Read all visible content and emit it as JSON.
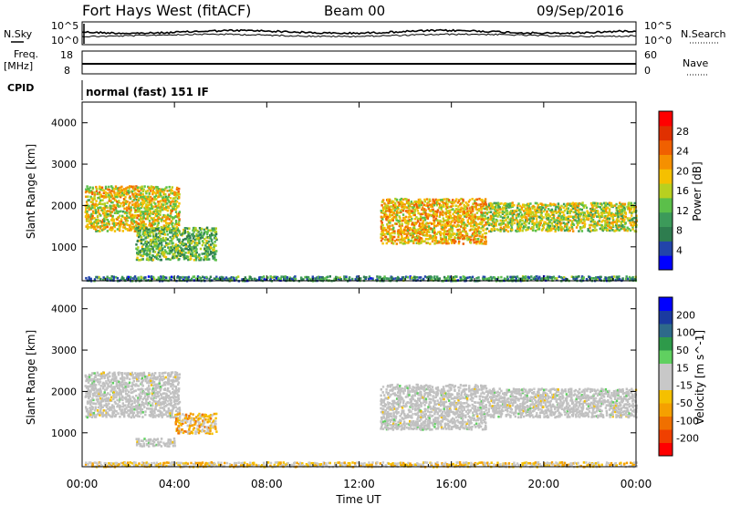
{
  "header": {
    "station": "Fort Hays West (fitACF)",
    "beam": "Beam 00",
    "date": "09/Sep/2016"
  },
  "top_panels": {
    "nsky_label": "N.Sky",
    "nsky_ticks": [
      "10^5",
      "10^0"
    ],
    "nsearch_label": "N.Search",
    "nsearch_ticks": [
      "10^5",
      "10^0"
    ],
    "freq_label_1": "Freq.",
    "freq_label_2": "[MHz]",
    "freq_ticks": [
      "18",
      "8"
    ],
    "nave_label": "Nave",
    "nave_ticks": [
      "60",
      "0"
    ],
    "cpid_label": "CPID",
    "cpid_text": "normal (fast) 151 IF"
  },
  "colors": {
    "power_scale": [
      "#0000ff",
      "#2244aa",
      "#2e7d4f",
      "#3c9a5a",
      "#5bbf4a",
      "#b8d020",
      "#f5c000",
      "#f59000",
      "#f06000",
      "#e03000",
      "#ff0000"
    ],
    "velocity_scale": [
      "#ff0000",
      "#f04000",
      "#f07000",
      "#f5a000",
      "#f5c000",
      "#c8c8c8",
      "#c8c8c8",
      "#60d060",
      "#2e9a4a",
      "#2e6a8a",
      "#1a3aa0",
      "#0000ff"
    ],
    "ground_scatter": "#c0c0c0"
  },
  "chart_data": [
    {
      "type": "heatmap",
      "title": "",
      "xlabel": "",
      "ylabel": "Slant Range [km]",
      "yticks": [
        "1000",
        "2000",
        "3000",
        "4000"
      ],
      "ylim": [
        180,
        4500
      ],
      "x_range_hours": [
        0,
        24
      ],
      "colorbar_label": "Power [dB]",
      "colorbar_ticks": [
        "4",
        "8",
        "12",
        "16",
        "20",
        "24",
        "28"
      ],
      "colorbar_range": [
        0,
        32
      ],
      "scatter_regions": [
        {
          "t_start": 0.1,
          "t_end": 4.2,
          "range_start": 1400,
          "range_end": 2500,
          "level": 18
        },
        {
          "t_start": 2.3,
          "t_end": 5.8,
          "range_start": 700,
          "range_end": 1500,
          "level": 12
        },
        {
          "t_start": 12.9,
          "t_end": 17.5,
          "range_start": 1100,
          "range_end": 2200,
          "level": 20
        },
        {
          "t_start": 17.5,
          "t_end": 24.0,
          "range_start": 1400,
          "range_end": 2100,
          "level": 16
        },
        {
          "t_start": 0.1,
          "t_end": 24.0,
          "range_start": 200,
          "range_end": 320,
          "level": 8
        }
      ]
    },
    {
      "type": "heatmap",
      "title": "",
      "xlabel": "Time UT",
      "ylabel": "Slant Range [km]",
      "yticks": [
        "1000",
        "2000",
        "3000",
        "4000"
      ],
      "ylim": [
        180,
        4500
      ],
      "x_range_hours": [
        0,
        24
      ],
      "xticks": [
        "00:00",
        "04:00",
        "08:00",
        "12:00",
        "16:00",
        "20:00",
        "00:00"
      ],
      "colorbar_label": "Velocity [m s^-1]",
      "colorbar_ticks": [
        "-200",
        "-100",
        "-50",
        "-15",
        "15",
        "50",
        "100",
        "200"
      ],
      "colorbar_range": [
        -250,
        250
      ],
      "scatter_regions": [
        {
          "t_start": 0.1,
          "t_end": 4.2,
          "range_start": 1400,
          "range_end": 2500,
          "velocity": 0
        },
        {
          "t_start": 4.0,
          "t_end": 5.8,
          "range_start": 1000,
          "range_end": 1500,
          "velocity": -70
        },
        {
          "t_start": 2.3,
          "t_end": 4.0,
          "range_start": 700,
          "range_end": 900,
          "velocity": 0
        },
        {
          "t_start": 12.9,
          "t_end": 17.5,
          "range_start": 1100,
          "range_end": 2200,
          "velocity": 0
        },
        {
          "t_start": 17.5,
          "t_end": 24.0,
          "range_start": 1400,
          "range_end": 2100,
          "velocity": 0
        },
        {
          "t_start": 0.1,
          "t_end": 24.0,
          "range_start": 200,
          "range_end": 320,
          "velocity": -40
        }
      ]
    }
  ]
}
